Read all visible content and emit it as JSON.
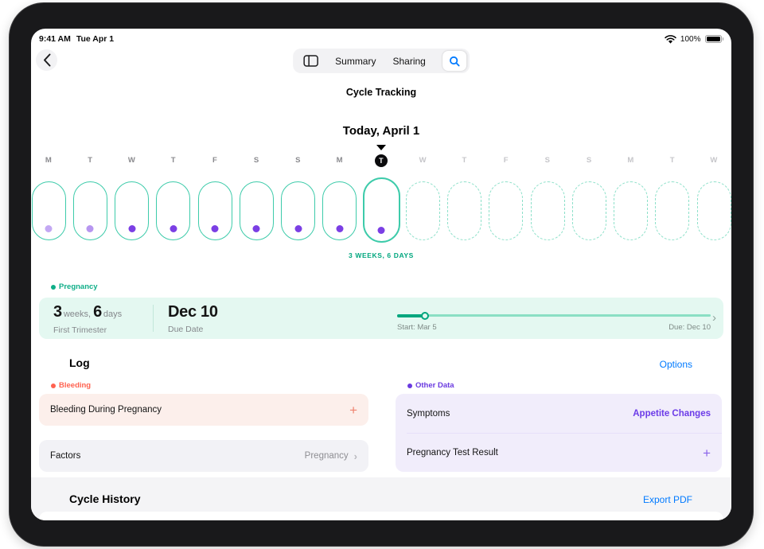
{
  "status_bar": {
    "time": "9:41 AM",
    "date": "Tue Apr 1",
    "battery_percent": "100%"
  },
  "nav": {
    "summary_label": "Summary",
    "sharing_label": "Sharing",
    "title": "Cycle Tracking"
  },
  "timeline": {
    "heading": "Today, April 1",
    "annotation": "3 WEEKS, 6 DAYS",
    "days": [
      {
        "letter": "M",
        "state": "logged",
        "dot_opacity": 0.45
      },
      {
        "letter": "T",
        "state": "logged",
        "dot_opacity": 0.55
      },
      {
        "letter": "W",
        "state": "logged",
        "dot_opacity": 1
      },
      {
        "letter": "T",
        "state": "logged",
        "dot_opacity": 1
      },
      {
        "letter": "F",
        "state": "logged",
        "dot_opacity": 1
      },
      {
        "letter": "S",
        "state": "logged",
        "dot_opacity": 1
      },
      {
        "letter": "S",
        "state": "logged",
        "dot_opacity": 1
      },
      {
        "letter": "M",
        "state": "logged",
        "dot_opacity": 1
      },
      {
        "letter": "T",
        "state": "logged",
        "dot_opacity": 1,
        "today": true
      },
      {
        "letter": "W",
        "state": "future"
      },
      {
        "letter": "T",
        "state": "future"
      },
      {
        "letter": "F",
        "state": "future"
      },
      {
        "letter": "S",
        "state": "future"
      },
      {
        "letter": "S",
        "state": "future"
      },
      {
        "letter": "M",
        "state": "future"
      },
      {
        "letter": "T",
        "state": "future"
      },
      {
        "letter": "W",
        "state": "future"
      }
    ]
  },
  "pregnancy": {
    "section_label": "Pregnancy",
    "weeks_value": "3",
    "weeks_unit": "weeks,",
    "days_value": "6",
    "days_unit": "days",
    "stage": "First Trimester",
    "due_value": "Dec 10",
    "due_caption": "Due Date",
    "start_caption": "Start: Mar 5",
    "due_date_caption": "Due: Dec 10",
    "progress_percent": 9
  },
  "log": {
    "heading": "Log",
    "options_label": "Options",
    "bleeding_section_label": "Bleeding",
    "bleeding_item_label": "Bleeding During Pregnancy",
    "factors_label": "Factors",
    "factors_value": "Pregnancy",
    "other_section_label": "Other Data",
    "symptoms_label": "Symptoms",
    "symptoms_value": "Appetite Changes",
    "test_result_label": "Pregnancy Test Result"
  },
  "history": {
    "heading": "Cycle History",
    "export_label": "Export PDF"
  },
  "colors": {
    "teal_text": "#00A67E",
    "mint_border": "#3DCBAA",
    "mint_card": "#E4F8F1",
    "purple": "#6C3CE8",
    "purple_dot": "#7B3FE4",
    "purple_card": "#F1EDFB",
    "red": "#FF6250",
    "red_card": "#FCEFEB",
    "gray_card": "#F2F2F6",
    "blue_link": "#007AFF"
  }
}
